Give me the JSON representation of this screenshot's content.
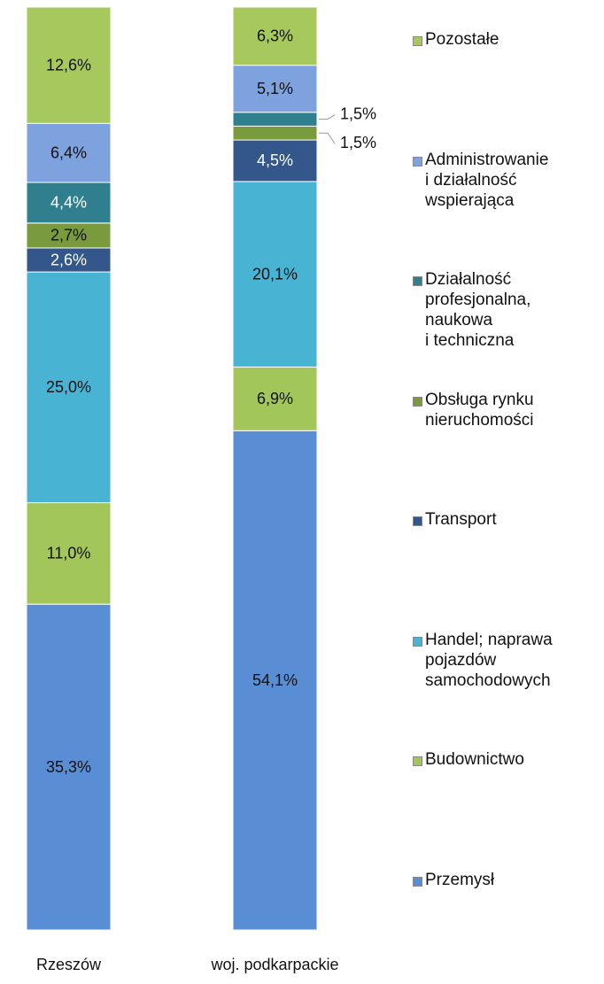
{
  "chart_data": {
    "type": "stacked_bar",
    "categories": [
      "Rzeszów",
      "woj. podkarpackie"
    ],
    "ylim": [
      0,
      100
    ],
    "series": [
      {
        "name": "Przemysł",
        "color": "#5a8ed4",
        "values": [
          35.3,
          54.1
        ],
        "value_labels": [
          "35,3%",
          "54,1%"
        ]
      },
      {
        "name": "Budownictwo",
        "color": "#a3c65a",
        "values": [
          11.0,
          6.9
        ],
        "value_labels": [
          "11,0%",
          "6,9%"
        ]
      },
      {
        "name": "Handel; naprawa\npojazdów\nsamochodowych",
        "color": "#48b3d3",
        "values": [
          25.0,
          20.1
        ],
        "value_labels": [
          "25,0%",
          "20,1%"
        ]
      },
      {
        "name": "Transport",
        "color": "#33578a",
        "values": [
          2.6,
          4.5
        ],
        "value_labels": [
          "2,6%",
          "4,5%"
        ]
      },
      {
        "name": "Obsługa rynku\nnieruchomości",
        "color": "#7a9a3e",
        "values": [
          2.7,
          1.5
        ],
        "value_labels": [
          "2,7%",
          "1,5%"
        ]
      },
      {
        "name": "Działalność\nprofesjonalna,\nnaukowa\ni techniczna",
        "color": "#2f7f8e",
        "values": [
          4.4,
          1.5
        ],
        "value_labels": [
          "4,4%",
          "1,5%"
        ]
      },
      {
        "name": "Administrowanie\ni działalność\nwspierająca",
        "color": "#7ea2de",
        "values": [
          6.4,
          5.1
        ],
        "value_labels": [
          "6,4%",
          "5,1%"
        ]
      },
      {
        "name": "Pozostałe",
        "color": "#a6c85c",
        "values": [
          12.6,
          6.3
        ],
        "value_labels": [
          "12,6%",
          "6,3%"
        ]
      }
    ]
  }
}
